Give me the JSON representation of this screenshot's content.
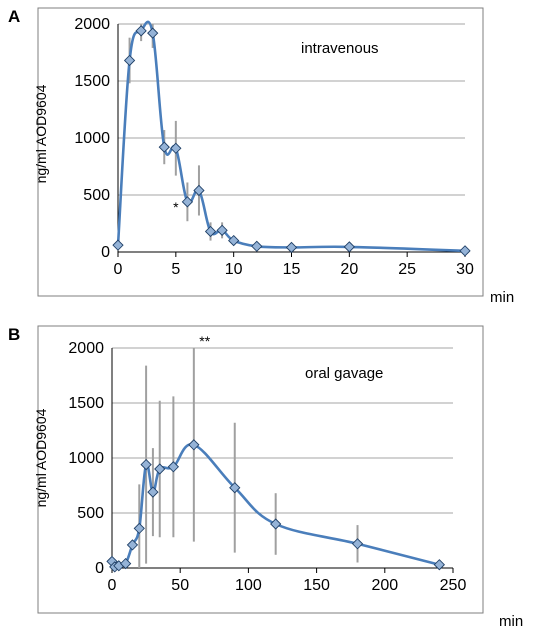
{
  "chart_data": [
    {
      "type": "line",
      "panel_label": "A",
      "annotation": "intravenous",
      "ylabel": "ng/ml AOD9604",
      "xlabel": "min",
      "xlim": [
        0,
        30
      ],
      "ylim": [
        0,
        2000
      ],
      "xticks": [
        "0",
        "5",
        "10",
        "15",
        "20",
        "25",
        "30"
      ],
      "yticks": [
        "0",
        "500",
        "1000",
        "1500",
        "2000"
      ],
      "grid": "horizontal",
      "series_color": "#4a7ebb",
      "marker_fill": "#95b3d7",
      "errorbar_color": "#a0a0a0",
      "significance_marks": [
        {
          "x": 5,
          "y": 350,
          "text": "*"
        }
      ],
      "points": [
        {
          "x": 0,
          "y": 60,
          "err": 0
        },
        {
          "x": 1,
          "y": 1680,
          "err": 200
        },
        {
          "x": 2,
          "y": 1940,
          "err": 90
        },
        {
          "x": 3,
          "y": 1920,
          "err": 130
        },
        {
          "x": 4,
          "y": 920,
          "err": 150
        },
        {
          "x": 5,
          "y": 910,
          "err": 240
        },
        {
          "x": 6,
          "y": 440,
          "err": 170
        },
        {
          "x": 7,
          "y": 540,
          "err": 220
        },
        {
          "x": 8,
          "y": 180,
          "err": 80
        },
        {
          "x": 9,
          "y": 190,
          "err": 70
        },
        {
          "x": 10,
          "y": 100,
          "err": 30
        },
        {
          "x": 12,
          "y": 50,
          "err": 20
        },
        {
          "x": 15,
          "y": 40,
          "err": 10
        },
        {
          "x": 20,
          "y": 45,
          "err": 10
        },
        {
          "x": 30,
          "y": 10,
          "err": 5
        }
      ]
    },
    {
      "type": "line",
      "panel_label": "B",
      "annotation": "oral gavage",
      "ylabel": "ng/ml AOD9604",
      "xlabel": "min",
      "xlim": [
        0,
        250
      ],
      "ylim": [
        0,
        2000
      ],
      "xticks": [
        "0",
        "50",
        "100",
        "150",
        "200",
        "250"
      ],
      "yticks": [
        "0",
        "500",
        "1000",
        "1500",
        "2000"
      ],
      "grid": "horizontal",
      "series_color": "#4a7ebb",
      "marker_fill": "#95b3d7",
      "errorbar_color": "#a0a0a0",
      "significance_marks": [
        {
          "x": 68,
          "y": 2020,
          "text": "**"
        }
      ],
      "points": [
        {
          "x": 0,
          "y": 60,
          "err": 0
        },
        {
          "x": 2,
          "y": 10,
          "err": 0
        },
        {
          "x": 5,
          "y": 20,
          "err": 0
        },
        {
          "x": 10,
          "y": 40,
          "err": 0
        },
        {
          "x": 15,
          "y": 210,
          "err": 0
        },
        {
          "x": 20,
          "y": 360,
          "err": 400
        },
        {
          "x": 25,
          "y": 940,
          "err": 900
        },
        {
          "x": 30,
          "y": 690,
          "err": 400
        },
        {
          "x": 35,
          "y": 900,
          "err": 620
        },
        {
          "x": 45,
          "y": 920,
          "err": 640
        },
        {
          "x": 60,
          "y": 1120,
          "err": 880
        },
        {
          "x": 90,
          "y": 730,
          "err": 590
        },
        {
          "x": 120,
          "y": 400,
          "err": 280
        },
        {
          "x": 180,
          "y": 220,
          "err": 170
        },
        {
          "x": 240,
          "y": 30,
          "err": 20
        }
      ]
    }
  ]
}
